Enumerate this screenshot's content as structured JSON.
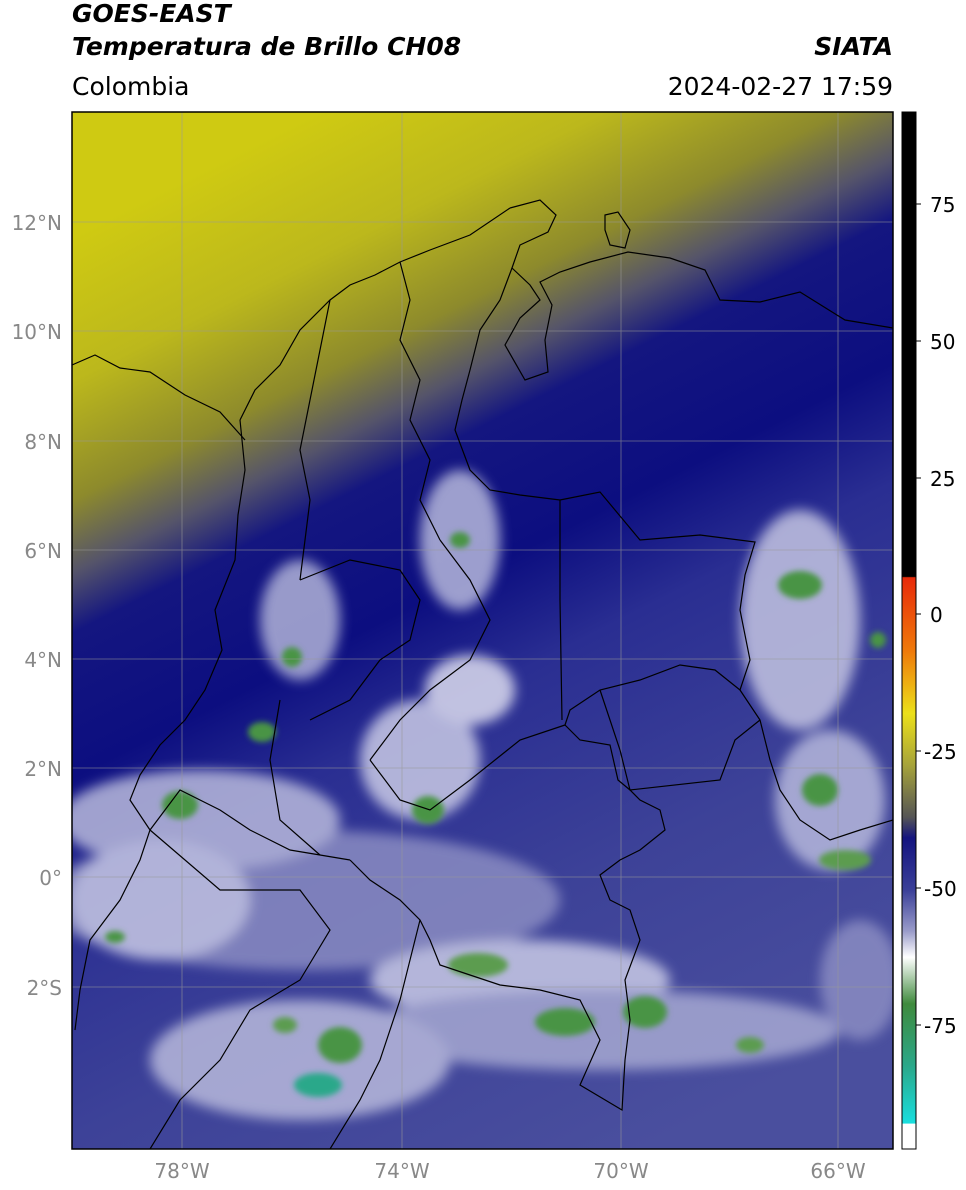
{
  "header": {
    "satellite": "GOES-EAST",
    "product": "Temperatura de Brillo CH08",
    "region": "Colombia",
    "agency": "SIATA",
    "datetime": "2024-02-27 17:59"
  },
  "axes": {
    "lat_ticks": [
      {
        "value": 12,
        "label": "12°N"
      },
      {
        "value": 10,
        "label": "10°N"
      },
      {
        "value": 8,
        "label": "8°N"
      },
      {
        "value": 6,
        "label": "6°N"
      },
      {
        "value": 4,
        "label": "4°N"
      },
      {
        "value": 2,
        "label": "2°N"
      },
      {
        "value": 0,
        "label": "0°"
      },
      {
        "value": -2,
        "label": "2°S"
      }
    ],
    "lon_ticks": [
      {
        "value": -78,
        "label": "78°W"
      },
      {
        "value": -74,
        "label": "74°W"
      },
      {
        "value": -70,
        "label": "70°W"
      },
      {
        "value": -66,
        "label": "66°W"
      }
    ],
    "lat_range": [
      -5,
      14
    ],
    "lon_range": [
      -80,
      -65
    ],
    "grid": true
  },
  "colorbar": {
    "range": [
      -95,
      90
    ],
    "ticks": [
      {
        "value": 75,
        "label": "75"
      },
      {
        "value": 50,
        "label": "50"
      },
      {
        "value": 25,
        "label": "25"
      },
      {
        "value": 0,
        "label": "0"
      },
      {
        "value": -25,
        "label": "-25"
      },
      {
        "value": -50,
        "label": "-50"
      },
      {
        "value": -75,
        "label": "-75"
      }
    ]
  },
  "colors": {
    "warm_yellow": "#c9c614",
    "olive": "#6f6f3a",
    "gray": "#4a4a58",
    "navy": "#0c0e85",
    "blue": "#3a3f98",
    "lavender": "#8a8cc2",
    "white": "#f4f4fa",
    "green": "#3f8a3d",
    "teal": "#2aa88a",
    "cyan": "#19dede",
    "red": "#e82a0a",
    "orange": "#f08a0a",
    "yellow": "#e8e018",
    "black": "#000000"
  }
}
